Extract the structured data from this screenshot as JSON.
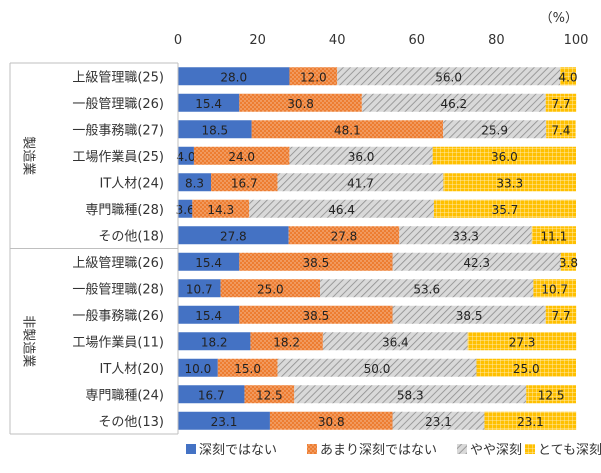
{
  "chart_data": {
    "type": "bar",
    "orientation": "horizontal",
    "stacked": true,
    "unit": "（%）",
    "xlim": [
      0,
      100
    ],
    "xticks": [
      0,
      20,
      40,
      60,
      80,
      100
    ],
    "legend_position": "bottom",
    "groups": [
      {
        "name": "製造業",
        "categories": [
          "上級管理職(25)",
          "一般管理職(26)",
          "一般事務職(27)",
          "工場作業員(25)",
          "IT人材(24)",
          "専門職種(28)",
          "その他(18)"
        ],
        "series": [
          {
            "name": "深刻ではない",
            "values": [
              28.0,
              15.4,
              18.5,
              4.0,
              8.3,
              3.6,
              27.8
            ]
          },
          {
            "name": "あまり深刻ではない",
            "values": [
              12.0,
              30.8,
              48.1,
              24.0,
              16.7,
              14.3,
              27.8
            ]
          },
          {
            "name": "やや深刻",
            "values": [
              56.0,
              46.2,
              25.9,
              36.0,
              41.7,
              46.4,
              33.3
            ]
          },
          {
            "name": "とても深刻",
            "values": [
              4.0,
              7.7,
              7.4,
              36.0,
              33.3,
              35.7,
              11.1
            ]
          }
        ]
      },
      {
        "name": "非製造業",
        "categories": [
          "上級管理職(26)",
          "一般管理職(28)",
          "一般事務職(26)",
          "工場作業員(11)",
          "IT人材(20)",
          "専門職種(24)",
          "その他(13)"
        ],
        "series": [
          {
            "name": "深刻ではない",
            "values": [
              15.4,
              10.7,
              15.4,
              18.2,
              10.0,
              16.7,
              23.1
            ]
          },
          {
            "name": "あまり深刻ではない",
            "values": [
              38.5,
              25.0,
              38.5,
              18.2,
              15.0,
              12.5,
              30.8
            ]
          },
          {
            "name": "やや深刻",
            "values": [
              42.3,
              53.6,
              38.5,
              36.4,
              50.0,
              58.3,
              23.1
            ]
          },
          {
            "name": "とても深刻",
            "values": [
              3.8,
              10.7,
              7.7,
              27.3,
              25.0,
              12.5,
              23.1
            ]
          }
        ]
      }
    ],
    "colors": [
      "#4472c4",
      "#ed7d31",
      "#a5a5a5",
      "#ffc000"
    ]
  }
}
